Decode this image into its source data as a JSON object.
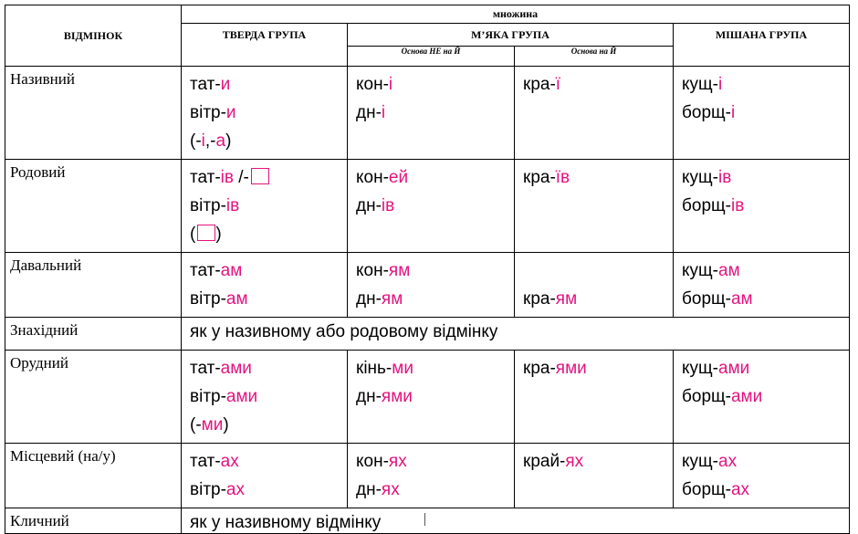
{
  "header": {
    "case": "ВІДМІНОК",
    "plural": "множина",
    "hard": "ТВЕРДА ГРУПА",
    "soft": "М’ЯКА ГРУПА",
    "soft_a": "Основа НЕ на Й",
    "soft_b": "Основа на Й",
    "mixed": "МІШАНА ГРУПА"
  },
  "rows": [
    {
      "case": "Називний",
      "cells": [
        [
          [
            "тат-",
            "и"
          ],
          [
            "вітр-",
            "и"
          ],
          [
            "(-",
            "і",
            ",-",
            "а",
            ")"
          ]
        ],
        [
          [
            "кон-",
            "і"
          ],
          [
            "дн-",
            "і"
          ]
        ],
        [
          [
            "кра-",
            "ї"
          ]
        ],
        [
          [
            "кущ-",
            "і"
          ],
          [
            "борщ-",
            "і"
          ]
        ]
      ]
    },
    {
      "case": "Родовий",
      "cells": [
        [
          [
            "тат-",
            "ів",
            " /-"
          ],
          [
            "вітр-",
            "ів"
          ],
          [
            "(",
            ")"
          ]
        ],
        [
          [
            "кон-",
            "ей"
          ],
          [
            "дн-",
            "ів"
          ]
        ],
        [
          [
            "кра-",
            "їв"
          ]
        ],
        [
          [
            "кущ-",
            "ів"
          ],
          [
            "борщ-",
            "ів"
          ]
        ]
      ]
    },
    {
      "case": "Давальний",
      "cells": [
        [
          [
            "тат-",
            "ам"
          ],
          [
            "вітр-",
            "ам"
          ]
        ],
        [
          [
            "кон-",
            "ям"
          ],
          [
            "дн-",
            "ям"
          ]
        ],
        [
          [
            "кра-",
            "ям"
          ]
        ],
        [
          [
            "кущ-",
            "ам"
          ],
          [
            "борщ-",
            "ам"
          ]
        ]
      ]
    },
    {
      "case": "Знахідний",
      "note": "як у називному або родовому відмінку"
    },
    {
      "case": "Орудний",
      "cells": [
        [
          [
            "тат-",
            "ами"
          ],
          [
            "вітр-",
            "ами"
          ],
          [
            "(-",
            "ми",
            ")"
          ]
        ],
        [
          [
            "кінь-",
            "ми"
          ],
          [
            "дн-",
            "ями"
          ]
        ],
        [
          [
            "кра-",
            "ями"
          ]
        ],
        [
          [
            "кущ-",
            "ами"
          ],
          [
            "борщ-",
            "ами"
          ]
        ]
      ]
    },
    {
      "case": "Місцевий (на/у)",
      "cells": [
        [
          [
            "тат-",
            "ах"
          ],
          [
            "вітр-",
            "ах"
          ]
        ],
        [
          [
            "кон-",
            "ях"
          ],
          [
            "дн-",
            "ях"
          ]
        ],
        [
          [
            "край-",
            "ях"
          ]
        ],
        [
          [
            "кущ-",
            "ах"
          ],
          [
            "борщ-",
            "ах"
          ]
        ]
      ]
    },
    {
      "case": "Кличний",
      "note": "як у називному відмінку"
    }
  ]
}
